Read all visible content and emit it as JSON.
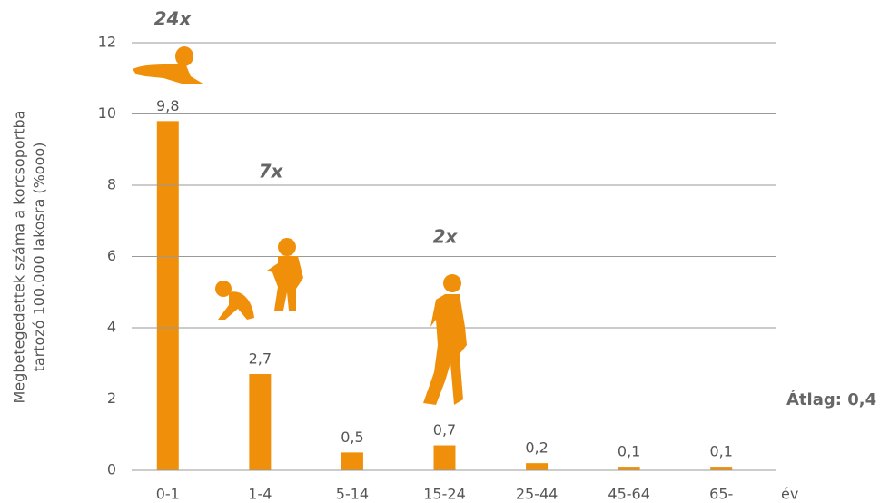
{
  "chart_data": {
    "type": "bar",
    "y_label": [
      "Megbetegedettek száma a korcsoportba",
      "tartozó 100.000 lakosra (%ooo)"
    ],
    "x_unit": "év",
    "categories": [
      "0-1",
      "1-4",
      "5-14",
      "15-24",
      "25-44",
      "45-64",
      "65-"
    ],
    "values": [
      9.8,
      2.7,
      0.5,
      0.7,
      0.2,
      0.1,
      0.1
    ],
    "value_labels": [
      "9,8",
      "2,7",
      "0,5",
      "0,7",
      "0,2",
      "0,1",
      "0,1"
    ],
    "color": "#f0900a",
    "ylim": [
      0,
      12
    ],
    "yticks": [
      0,
      2,
      4,
      6,
      8,
      10,
      12
    ],
    "grid": true,
    "annotations": [
      "24x",
      "7x",
      "2x",
      "Átlag: 0,4"
    ]
  }
}
